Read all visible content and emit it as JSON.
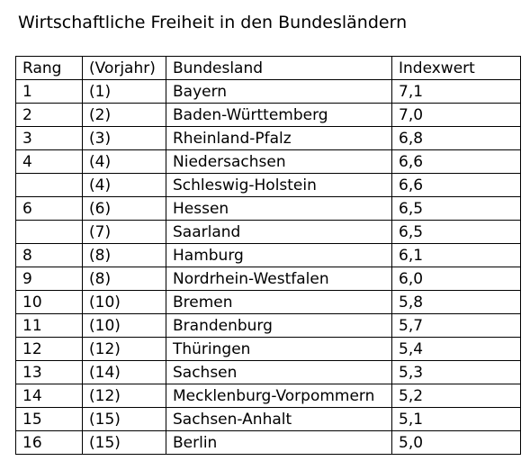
{
  "title": "Wirtschaftliche Freiheit in den Bundesländern",
  "table": {
    "headers": [
      "Rang",
      "(Vorjahr)",
      "Bundesland",
      "Indexwert"
    ],
    "rows": [
      {
        "rang": "1",
        "vorjahr": "(1)",
        "bundesland": "Bayern",
        "indexwert": "7,1"
      },
      {
        "rang": "2",
        "vorjahr": "(2)",
        "bundesland": "Baden-Württemberg",
        "indexwert": "7,0"
      },
      {
        "rang": "3",
        "vorjahr": "(3)",
        "bundesland": "Rheinland-Pfalz",
        "indexwert": "6,8"
      },
      {
        "rang": "4",
        "vorjahr": "(4)",
        "bundesland": "Niedersachsen",
        "indexwert": "6,6"
      },
      {
        "rang": "",
        "vorjahr": "(4)",
        "bundesland": "Schleswig-Holstein",
        "indexwert": "6,6"
      },
      {
        "rang": "6",
        "vorjahr": "(6)",
        "bundesland": "Hessen",
        "indexwert": "6,5"
      },
      {
        "rang": "",
        "vorjahr": "(7)",
        "bundesland": "Saarland",
        "indexwert": "6,5"
      },
      {
        "rang": "8",
        "vorjahr": "(8)",
        "bundesland": "Hamburg",
        "indexwert": "6,1"
      },
      {
        "rang": "9",
        "vorjahr": "(8)",
        "bundesland": "Nordrhein-Westfalen",
        "indexwert": "6,0"
      },
      {
        "rang": "10",
        "vorjahr": "(10)",
        "bundesland": "Bremen",
        "indexwert": "5,8"
      },
      {
        "rang": "11",
        "vorjahr": "(10)",
        "bundesland": "Brandenburg",
        "indexwert": "5,7"
      },
      {
        "rang": "12",
        "vorjahr": "(12)",
        "bundesland": "Thüringen",
        "indexwert": "5,4"
      },
      {
        "rang": "13",
        "vorjahr": "(14)",
        "bundesland": "Sachsen",
        "indexwert": "5,3"
      },
      {
        "rang": "14",
        "vorjahr": "(12)",
        "bundesland": "Mecklenburg-Vorpommern",
        "indexwert": "5,2"
      },
      {
        "rang": "15",
        "vorjahr": "(15)",
        "bundesland": "Sachsen-Anhalt",
        "indexwert": "5,1"
      },
      {
        "rang": "16",
        "vorjahr": "(15)",
        "bundesland": "Berlin",
        "indexwert": "5,0"
      }
    ]
  }
}
